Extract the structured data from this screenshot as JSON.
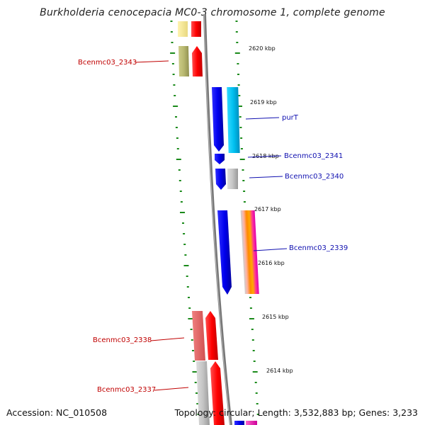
{
  "title": "Burkholderia cenocepacia MC0-3 chromosome 1, complete genome",
  "footer": {
    "accession": "Accession: NC_010508",
    "summary": "Topology: circular; Length: 3,532,883 bp; Genes: 3,233"
  },
  "kbp_labels": [
    "2620 kbp",
    "2619 kbp",
    "2618 kbp",
    "2617 kbp",
    "2616 kbp",
    "2615 kbp",
    "2614 kbp"
  ],
  "genes": {
    "left": [
      {
        "name": "Bcenmc03_2343",
        "color": "#c00000"
      },
      {
        "name": "Bcenmc03_2338",
        "color": "#c00000"
      },
      {
        "name": "Bcenmc03_2337",
        "color": "#c00000"
      }
    ],
    "right": [
      {
        "name": "purT",
        "color": "#1010b0"
      },
      {
        "name": "Bcenmc03_2341",
        "color": "#1010b0"
      },
      {
        "name": "Bcenmc03_2340",
        "color": "#1010b0"
      },
      {
        "name": "Bcenmc03_2339",
        "color": "#1010b0"
      }
    ]
  },
  "colors": {
    "tick_green": "#1a8a1a",
    "backbone": "#7a7a7a",
    "reverse_strand": "#0000e0",
    "forward_strand": "#ee0000"
  }
}
